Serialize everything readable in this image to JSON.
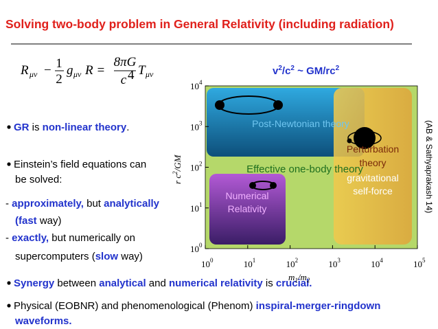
{
  "header": {
    "title": "Solving two-body problem in General Relativity (including radiation)"
  },
  "equation": {
    "lhs_symbol": "R",
    "lhs_index": "μν",
    "minus": "−",
    "half_num": "1",
    "half_den": "2",
    "metric": "g",
    "metric_index": "μν",
    "scalar": "R =",
    "coef_num": "8πG",
    "coef_den": "c",
    "coef_den_exp": "4",
    "rhs_symbol": "T",
    "rhs_index": "μν"
  },
  "scaling": {
    "parts": [
      "v",
      "2",
      "/c",
      "2",
      " ~ GM/rc",
      "2"
    ]
  },
  "bullets": [
    {
      "bullet": true,
      "runs": [
        {
          "text": "GR",
          "color": "#2233cc"
        },
        {
          "text": " is "
        },
        {
          "text": "non-linear theory",
          "color": "#2233cc"
        },
        {
          "text": "."
        }
      ]
    },
    {
      "bullet": true,
      "runs": [
        {
          "text": "Einstein’s field equations can"
        }
      ]
    },
    {
      "bullet": false,
      "runs": [
        {
          "text": "be solved:"
        }
      ]
    },
    {
      "bullet": false,
      "runs": [
        {
          "text": "- "
        },
        {
          "text": "approximately,",
          "color": "#2233cc"
        },
        {
          "text": " but "
        },
        {
          "text": "analytically",
          "color": "#2233cc"
        }
      ]
    },
    {
      "bullet": false,
      "runs": [
        {
          "text": "(fast",
          "color": "#2233cc"
        },
        {
          "text": " way)"
        }
      ]
    },
    {
      "bullet": false,
      "runs": [
        {
          "text": "- "
        },
        {
          "text": "exactly,",
          "color": "#2233cc"
        },
        {
          "text": " but numerically on"
        }
      ]
    },
    {
      "bullet": false,
      "runs": [
        {
          "text": "supercomputers ("
        },
        {
          "text": "slow",
          "color": "#2233cc"
        },
        {
          "text": " way)"
        }
      ]
    },
    {
      "bullet": true,
      "runs": [
        {
          "text": "Synergy",
          "color": "#2233cc"
        },
        {
          "text": " between "
        },
        {
          "text": "analytical",
          "color": "#2233cc"
        },
        {
          "text": " and "
        },
        {
          "text": "numerical relativity",
          "color": "#2233cc"
        },
        {
          "text": " is "
        },
        {
          "text": "crucial.",
          "color": "#2233cc"
        }
      ]
    },
    {
      "bullet": true,
      "runs": [
        {
          "text": "Physical (EOBNR) and phenomenological (Phenom) "
        },
        {
          "text": "inspiral-merger-ringdown",
          "color": "#2233cc"
        }
      ]
    },
    {
      "bullet": false,
      "runs": [
        {
          "text": "waveforms.",
          "color": "#2233cc"
        }
      ]
    }
  ],
  "diagram": {
    "x_axis": {
      "label": "m",
      "label_sub": "1",
      "label_rest": "/m",
      "label_sub2": "2",
      "ticks": [
        {
          "base": "10",
          "exp": "0"
        },
        {
          "base": "10",
          "exp": "1"
        },
        {
          "base": "10",
          "exp": "2"
        },
        {
          "base": "10",
          "exp": "3"
        },
        {
          "base": "10",
          "exp": "4"
        },
        {
          "base": "10",
          "exp": "5"
        }
      ]
    },
    "y_axis": {
      "label": "r c",
      "label_exp": "2",
      "label_rest": "/GM",
      "ticks": [
        {
          "base": "10",
          "exp": "0"
        },
        {
          "base": "10",
          "exp": "1"
        },
        {
          "base": "10",
          "exp": "2"
        },
        {
          "base": "10",
          "exp": "3"
        },
        {
          "base": "10",
          "exp": "4"
        }
      ]
    },
    "regions": {
      "post_newtonian": "Post-Newtonian theory",
      "perturbation": [
        "Perturbation",
        "theory"
      ],
      "self_force": [
        "gravitational",
        "self-force"
      ],
      "eob": "Effective one-body theory",
      "numerical": [
        "Numerical",
        "Relativity"
      ]
    },
    "citation": "(AB & Sathyaprakash 14)"
  }
}
